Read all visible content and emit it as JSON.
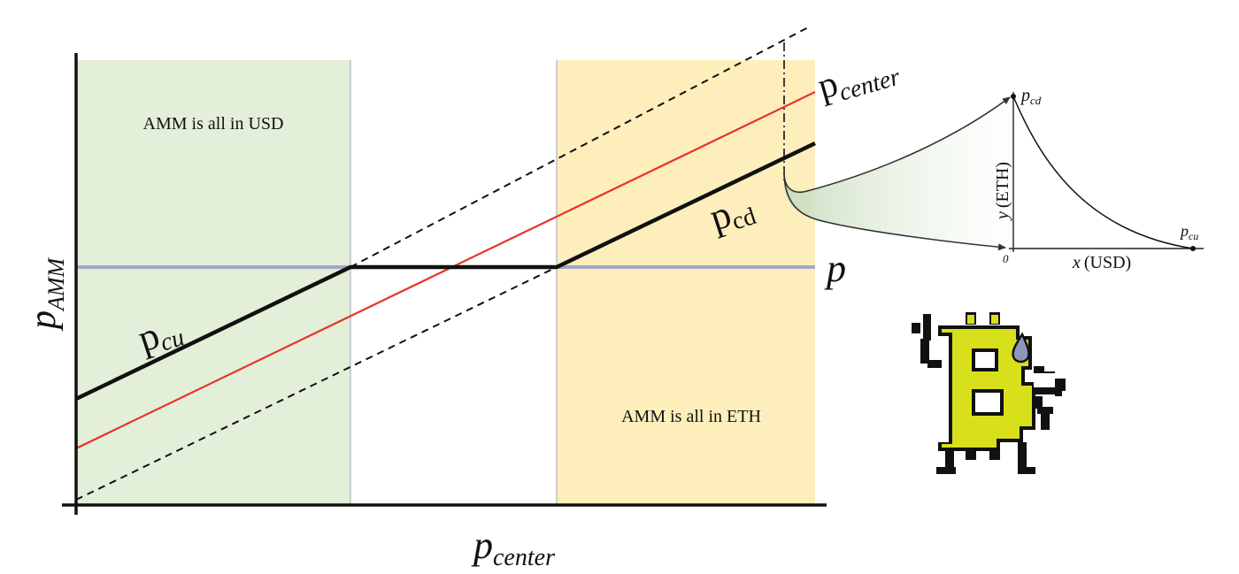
{
  "main_chart": {
    "y_axis_label": {
      "base": "p",
      "sub": "AMM"
    },
    "x_axis_label": {
      "base": "p",
      "sub": "center"
    },
    "region_usd_label": "AMM is all in USD",
    "region_eth_label": "AMM is all in ETH",
    "line_labels": {
      "p_center": {
        "base": "p",
        "sub": "center"
      },
      "p_cd": {
        "base": "p",
        "sub": "cd"
      },
      "p_cu": {
        "base": "p",
        "sub": "cu"
      },
      "p": {
        "base": "p"
      }
    },
    "colors": {
      "usd_region": "#e3efd9",
      "eth_region": "#fdeebc",
      "center_line": "#e8332a",
      "price_line": "#a3a8c2",
      "amm_line": "#111111"
    }
  },
  "inset_chart": {
    "x_label": {
      "var": "x",
      "unit": "(USD)"
    },
    "y_label": {
      "var": "y",
      "unit": "(ETH)"
    },
    "origin_label": "0",
    "point_top": {
      "base": "p",
      "sub": "cd"
    },
    "point_right": {
      "base": "p",
      "sub": "cu"
    }
  },
  "mascot": {
    "icon": "bitcoin-mascot-icon",
    "colors": {
      "body": "#d7e01a",
      "outline": "#111111",
      "sweat": "#8f97b8"
    }
  }
}
